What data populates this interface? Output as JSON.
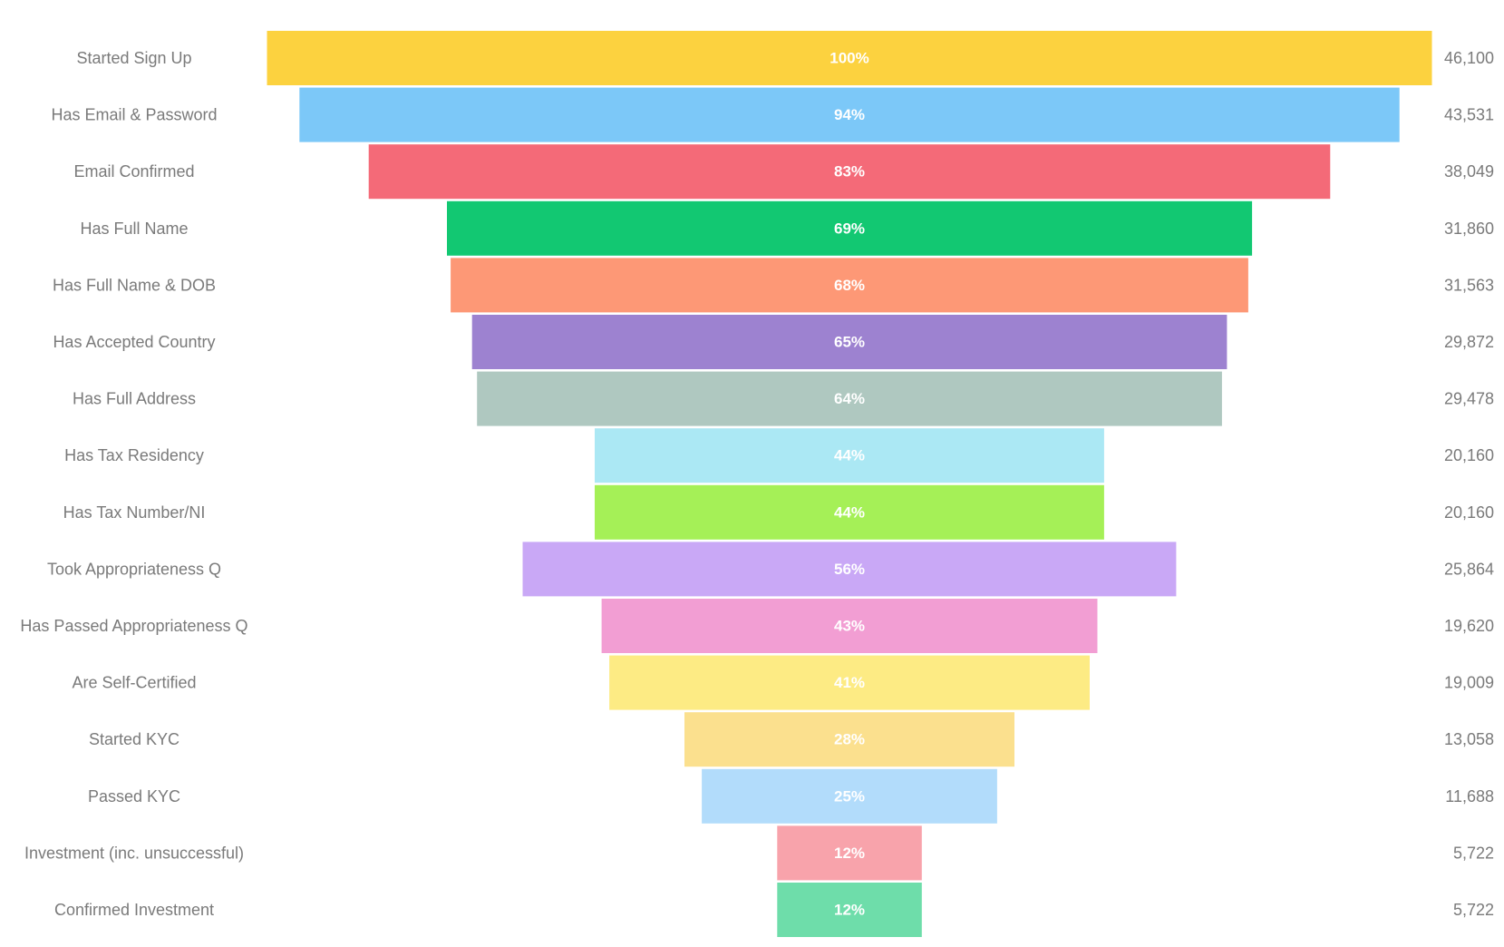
{
  "chart_data": {
    "type": "funnel",
    "title": "",
    "xlabel": "",
    "ylabel": "",
    "max_value": 46100,
    "stages": [
      {
        "label": "Started Sign Up",
        "value": 46100,
        "value_label": "46,100",
        "percent_label": "100%",
        "color": "#FCD23F"
      },
      {
        "label": "Has Email & Password",
        "value": 43531,
        "value_label": "43,531",
        "percent_label": "94%",
        "color": "#7CC8F8"
      },
      {
        "label": "Email Confirmed",
        "value": 38049,
        "value_label": "38,049",
        "percent_label": "83%",
        "color": "#F46A78"
      },
      {
        "label": "Has Full Name",
        "value": 31860,
        "value_label": "31,860",
        "percent_label": "69%",
        "color": "#12C872"
      },
      {
        "label": "Has Full Name & DOB",
        "value": 31563,
        "value_label": "31,563",
        "percent_label": "68%",
        "color": "#FD9876"
      },
      {
        "label": "Has Accepted Country",
        "value": 29872,
        "value_label": "29,872",
        "percent_label": "65%",
        "color": "#9D82D0"
      },
      {
        "label": "Has Full Address",
        "value": 29478,
        "value_label": "29,478",
        "percent_label": "64%",
        "color": "#AFC8C0"
      },
      {
        "label": "Has Tax Residency",
        "value": 20160,
        "value_label": "20,160",
        "percent_label": "44%",
        "color": "#ABE8F4"
      },
      {
        "label": "Has Tax Number/NI",
        "value": 20160,
        "value_label": "20,160",
        "percent_label": "44%",
        "color": "#A5F057"
      },
      {
        "label": "Took Appropriateness Q",
        "value": 25864,
        "value_label": "25,864",
        "percent_label": "56%",
        "color": "#C9A8F6"
      },
      {
        "label": "Has Passed Appropriateness Q",
        "value": 19620,
        "value_label": "19,620",
        "percent_label": "43%",
        "color": "#F29ED3"
      },
      {
        "label": "Are Self-Certified",
        "value": 19009,
        "value_label": "19,009",
        "percent_label": "41%",
        "color": "#FDEB84"
      },
      {
        "label": "Started KYC",
        "value": 13058,
        "value_label": "13,058",
        "percent_label": "28%",
        "color": "#FBE08E"
      },
      {
        "label": "Passed KYC",
        "value": 11688,
        "value_label": "11,688",
        "percent_label": "25%",
        "color": "#B2DCFB"
      },
      {
        "label": "Investment (inc. unsuccessful)",
        "value": 5722,
        "value_label": "5,722",
        "percent_label": "12%",
        "color": "#F8A3AB"
      },
      {
        "label": "Confirmed Investment",
        "value": 5722,
        "value_label": "5,722",
        "percent_label": "12%",
        "color": "#6EDDAA"
      }
    ]
  }
}
